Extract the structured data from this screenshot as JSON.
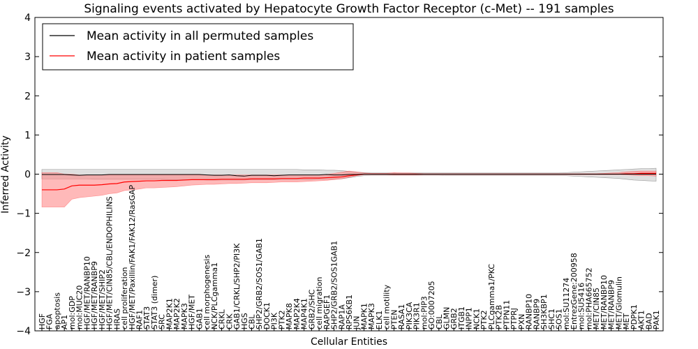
{
  "chart_data": {
    "type": "line",
    "title": "Signaling events activated by Hepatocyte Growth Factor Receptor (c-Met) -- 191 samples",
    "xlabel": "Cellular Entities",
    "ylabel": "Inferred Activity",
    "ylim": [
      -4,
      4
    ],
    "yticks": [
      "−4",
      "−3",
      "−2",
      "−1",
      "0",
      "1",
      "2",
      "3",
      "4"
    ],
    "legend_position": "top-left",
    "colors": {
      "permuted_line": "#000000",
      "permuted_band": "#bfbfbf",
      "patient_line": "#ff0000",
      "patient_band": "#ff8080"
    },
    "categories": [
      "HGF",
      "FGA",
      "apoptosis",
      "AP1",
      "mol:GDP",
      "mol:MUC20",
      "HGF/MET/RANBP10",
      "HGF/MET/RANBP9",
      "HGF/MET/SHIP2",
      "HGF/MET/CIN85/CBL/ENDOPHILINS",
      "HRAS",
      "cell proliferation",
      "HGF/MET/Paxillin/FAK1/FAK12/RasGAP",
      "RAF1",
      "STAT3",
      "STAT3 (dimer)",
      "SRC",
      "MAP2K1",
      "MAP2K2",
      "MAPK3",
      "HGF/MET",
      "GAB1",
      "cell morphogenesis",
      "NCK/PLCgamma1",
      "CRKL",
      "CRK",
      "GAB1/CRKL/SHP2/PI3K",
      "HGS",
      "CBL",
      "SHP2/GRB2/SOS1/GAB1",
      "DOCK1",
      "PI3K",
      "PTK2",
      "MAPK8",
      "MAP2K4",
      "MAP4K1",
      "GRB2/SHC",
      "cell migration",
      "RAPGEF1",
      "SHP2/GRB2/SOS1GAB1",
      "RAP1A",
      "RPS6KB1",
      "JUN",
      "MAPK1",
      "MAPK3",
      "ELK1",
      "cell motility",
      "PTEN",
      "RASA1",
      "PIK3CA",
      "PIK3R1",
      "mol:PIP3",
      "GO:0007205",
      "CBL",
      "GLMN",
      "GRB2",
      "ITGB1",
      "INPP1",
      "NCK1",
      "PTK2",
      "PLCgamma1/PKC",
      "PTK2B",
      "PTPN11",
      "PTPRJ",
      "PXN",
      "RANBP10",
      "RANBP9",
      "SH3KBP1",
      "SHC1",
      "SOS1",
      "mol:SU11274",
      "EntrezGene:200958",
      "mol:SU5416",
      "mol:PHA665752",
      "MET/CIN85",
      "MET/RANBP10",
      "MET/RANBP9",
      "MET/Glomulin",
      "MET",
      "PDPK1",
      "AKT1",
      "BAD",
      "PAK1"
    ],
    "series": [
      {
        "name": "Mean activity in all permuted samples",
        "mean": [
          -0.01,
          -0.01,
          -0.01,
          -0.01,
          -0.02,
          -0.03,
          -0.02,
          -0.02,
          -0.02,
          -0.01,
          -0.01,
          -0.01,
          -0.01,
          -0.01,
          -0.01,
          -0.01,
          -0.01,
          -0.01,
          -0.01,
          -0.01,
          -0.01,
          -0.01,
          -0.02,
          -0.03,
          -0.03,
          -0.02,
          -0.04,
          -0.05,
          -0.03,
          -0.03,
          -0.03,
          -0.04,
          -0.03,
          -0.02,
          -0.02,
          -0.02,
          -0.02,
          -0.02,
          -0.01,
          -0.02,
          -0.02,
          -0.01,
          -0.01,
          0.0,
          0.0,
          0.0,
          0.0,
          0.0,
          0.0,
          0.0,
          0.0,
          0.0,
          0.0,
          0.0,
          0.0,
          0.0,
          0.0,
          0.0,
          0.0,
          0.0,
          0.0,
          0.0,
          0.0,
          0.0,
          0.0,
          0.0,
          0.0,
          0.0,
          0.0,
          0.0,
          0.0,
          0.0,
          0.0,
          0.0,
          0.0,
          0.0,
          0.0,
          0.0,
          0.0,
          0.0,
          0.0,
          0.0,
          0.0
        ],
        "lower": [
          -0.12,
          -0.12,
          -0.12,
          -0.12,
          -0.12,
          -0.12,
          -0.12,
          -0.13,
          -0.13,
          -0.13,
          -0.13,
          -0.13,
          -0.13,
          -0.13,
          -0.13,
          -0.13,
          -0.13,
          -0.14,
          -0.14,
          -0.14,
          -0.14,
          -0.14,
          -0.15,
          -0.15,
          -0.15,
          -0.15,
          -0.15,
          -0.15,
          -0.14,
          -0.14,
          -0.14,
          -0.14,
          -0.14,
          -0.14,
          -0.14,
          -0.14,
          -0.14,
          -0.13,
          -0.13,
          -0.13,
          -0.12,
          -0.09,
          -0.06,
          -0.04,
          -0.03,
          -0.03,
          -0.03,
          -0.03,
          -0.03,
          -0.03,
          -0.03,
          -0.03,
          -0.03,
          -0.03,
          -0.04,
          -0.04,
          -0.04,
          -0.04,
          -0.04,
          -0.04,
          -0.04,
          -0.04,
          -0.04,
          -0.04,
          -0.04,
          -0.04,
          -0.04,
          -0.04,
          -0.04,
          -0.04,
          -0.04,
          -0.05,
          -0.06,
          -0.07,
          -0.08,
          -0.09,
          -0.1,
          -0.11,
          -0.13,
          -0.15,
          -0.16,
          -0.17,
          -0.18
        ],
        "upper": [
          0.12,
          0.12,
          0.12,
          0.12,
          0.12,
          0.12,
          0.12,
          0.12,
          0.12,
          0.12,
          0.12,
          0.12,
          0.12,
          0.12,
          0.12,
          0.12,
          0.12,
          0.12,
          0.12,
          0.12,
          0.12,
          0.12,
          0.12,
          0.12,
          0.12,
          0.12,
          0.12,
          0.12,
          0.12,
          0.12,
          0.12,
          0.12,
          0.12,
          0.12,
          0.12,
          0.11,
          0.11,
          0.11,
          0.1,
          0.1,
          0.09,
          0.07,
          0.05,
          0.04,
          0.03,
          0.03,
          0.03,
          0.03,
          0.03,
          0.03,
          0.03,
          0.03,
          0.03,
          0.03,
          0.03,
          0.03,
          0.03,
          0.03,
          0.03,
          0.03,
          0.03,
          0.03,
          0.03,
          0.03,
          0.03,
          0.03,
          0.03,
          0.03,
          0.03,
          0.03,
          0.04,
          0.05,
          0.06,
          0.07,
          0.08,
          0.09,
          0.1,
          0.11,
          0.12,
          0.13,
          0.14,
          0.14,
          0.15
        ]
      },
      {
        "name": "Mean activity in patient samples",
        "mean": [
          -0.4,
          -0.4,
          -0.4,
          -0.38,
          -0.3,
          -0.28,
          -0.28,
          -0.28,
          -0.27,
          -0.25,
          -0.24,
          -0.2,
          -0.19,
          -0.18,
          -0.17,
          -0.17,
          -0.16,
          -0.16,
          -0.16,
          -0.15,
          -0.14,
          -0.14,
          -0.14,
          -0.14,
          -0.13,
          -0.13,
          -0.13,
          -0.13,
          -0.12,
          -0.12,
          -0.12,
          -0.12,
          -0.11,
          -0.11,
          -0.11,
          -0.1,
          -0.1,
          -0.1,
          -0.09,
          -0.08,
          -0.07,
          -0.04,
          -0.02,
          0.0,
          0.0,
          0.0,
          0.0,
          0.0,
          0.0,
          0.0,
          0.0,
          0.0,
          0.0,
          0.0,
          0.0,
          0.0,
          0.0,
          0.0,
          0.0,
          0.0,
          0.0,
          0.0,
          0.0,
          0.0,
          0.0,
          0.0,
          0.0,
          0.0,
          0.0,
          0.0,
          0.0,
          0.0,
          0.0,
          0.0,
          0.0,
          0.0,
          0.0,
          0.0,
          0.01,
          0.01,
          0.02,
          0.02,
          0.02
        ],
        "lower": [
          -0.84,
          -0.84,
          -0.84,
          -0.84,
          -0.64,
          -0.6,
          -0.58,
          -0.56,
          -0.54,
          -0.5,
          -0.48,
          -0.42,
          -0.4,
          -0.38,
          -0.35,
          -0.35,
          -0.34,
          -0.33,
          -0.32,
          -0.3,
          -0.28,
          -0.27,
          -0.26,
          -0.26,
          -0.25,
          -0.24,
          -0.24,
          -0.23,
          -0.22,
          -0.22,
          -0.22,
          -0.21,
          -0.2,
          -0.2,
          -0.2,
          -0.19,
          -0.18,
          -0.17,
          -0.16,
          -0.14,
          -0.12,
          -0.08,
          -0.04,
          -0.01,
          -0.01,
          -0.01,
          -0.01,
          -0.02,
          -0.02,
          -0.02,
          -0.02,
          -0.01,
          -0.01,
          -0.01,
          -0.01,
          -0.01,
          -0.01,
          -0.01,
          -0.01,
          -0.01,
          -0.01,
          -0.01,
          -0.01,
          -0.01,
          -0.01,
          -0.01,
          -0.01,
          -0.01,
          -0.01,
          -0.01,
          -0.01,
          -0.01,
          -0.01,
          -0.01,
          -0.01,
          -0.01,
          -0.01,
          -0.01,
          -0.02,
          -0.03,
          -0.04,
          -0.04,
          -0.05
        ],
        "upper": [
          0.04,
          0.04,
          0.04,
          0.0,
          0.0,
          -0.02,
          -0.02,
          -0.02,
          -0.02,
          -0.02,
          -0.02,
          -0.02,
          -0.02,
          -0.02,
          -0.02,
          -0.02,
          -0.02,
          -0.02,
          -0.02,
          -0.02,
          -0.02,
          -0.02,
          -0.02,
          -0.02,
          -0.02,
          -0.02,
          -0.02,
          -0.02,
          -0.02,
          -0.02,
          -0.02,
          -0.02,
          -0.02,
          -0.02,
          -0.02,
          -0.02,
          -0.02,
          -0.02,
          -0.01,
          0.02,
          0.05,
          0.08,
          0.06,
          0.03,
          0.02,
          0.02,
          0.02,
          0.04,
          0.03,
          0.03,
          0.02,
          0.01,
          0.01,
          0.01,
          0.01,
          0.01,
          0.01,
          0.01,
          0.01,
          0.01,
          0.01,
          0.01,
          0.01,
          0.01,
          0.01,
          0.01,
          0.01,
          0.01,
          0.01,
          0.01,
          0.01,
          0.01,
          0.01,
          0.01,
          0.01,
          0.02,
          0.03,
          0.04,
          0.06,
          0.07,
          0.08,
          0.08,
          0.08
        ]
      }
    ]
  }
}
